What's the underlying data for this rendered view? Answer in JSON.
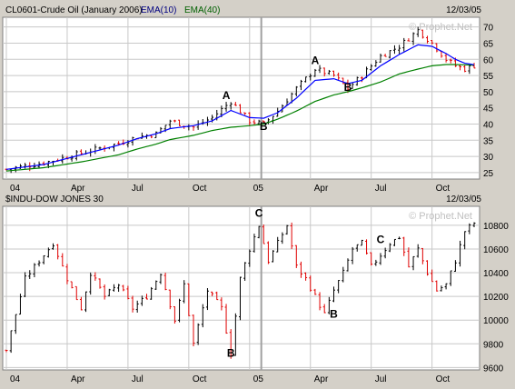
{
  "colors": {
    "background": "#d4d0c8",
    "plot": "#ffffff",
    "grid": "#c8c8c8",
    "up": "#000000",
    "down": "#e00000",
    "ema10": "#0000ff",
    "ema40": "#008000"
  },
  "chart_data": [
    {
      "type": "ohlc",
      "title": "CL0601-Crude Oil (January 2006)",
      "legend": [
        {
          "name": "EMA(10)",
          "color": "#0000ff"
        },
        {
          "name": "EMA(40)",
          "color": "#008000"
        }
      ],
      "date": "12/03/05",
      "watermark": "© Prophet.Net",
      "x_tick_labels": [
        "04",
        "Apr",
        "Jul",
        "Oct",
        "05",
        "Apr",
        "Jul",
        "Oct"
      ],
      "y_tick_labels": [
        "25",
        "30",
        "35",
        "40",
        "45",
        "50",
        "55",
        "60",
        "65",
        "70"
      ],
      "ylim": [
        23,
        73
      ],
      "grid": true,
      "weeks": 101,
      "year_boundary_week": 55,
      "anchors": {
        "weeks": [
          0,
          8,
          16,
          24,
          28,
          32,
          35,
          40,
          44,
          48,
          52,
          55,
          58,
          62,
          66,
          70,
          73,
          76,
          80,
          84,
          88,
          91,
          94,
          96,
          98,
          100
        ],
        "close": [
          26,
          28,
          31,
          34,
          36,
          37,
          41,
          39,
          42,
          47,
          41,
          40,
          44,
          51,
          57,
          55,
          51,
          55,
          61,
          64,
          69,
          65,
          60,
          58,
          57,
          58
        ],
        "ema10": [
          26,
          27.5,
          30.5,
          33.5,
          35.5,
          37,
          38.6,
          39.5,
          41,
          44.2,
          42,
          41.8,
          43.5,
          48,
          53.5,
          54,
          52.5,
          53.5,
          58,
          61.5,
          64.5,
          64,
          61.8,
          60,
          58.8,
          58.3
        ],
        "ema40": [
          25.5,
          26.5,
          28.3,
          30.5,
          32.3,
          33.8,
          35.2,
          36.5,
          38,
          39,
          39.5,
          40,
          41.5,
          44,
          47,
          49,
          50,
          51.2,
          53,
          55.5,
          57,
          58,
          58.4,
          58.4,
          58.3,
          58.2
        ]
      },
      "annotations": [
        {
          "text": "A",
          "week": 47,
          "value": 47.7
        },
        {
          "text": "B",
          "week": 55,
          "value": 38.2
        },
        {
          "text": "A",
          "week": 66,
          "value": 58.5
        },
        {
          "text": "B",
          "week": 73,
          "value": 50.3
        }
      ]
    },
    {
      "type": "ohlc",
      "title": "$INDU-DOW JONES 30",
      "date": "12/03/05",
      "watermark": "© Prophet.Net",
      "x_tick_labels": [
        "04",
        "Apr",
        "Jul",
        "Oct",
        "05",
        "Apr",
        "Jul",
        "Oct"
      ],
      "y_tick_labels": [
        "9600",
        "9800",
        "10000",
        "10200",
        "10400",
        "10600",
        "10800"
      ],
      "ylim": [
        9580,
        10960
      ],
      "grid": true,
      "weeks": 101,
      "year_boundary_week": 55,
      "anchors": {
        "weeks": [
          0,
          4,
          7,
          10,
          13,
          16,
          18,
          21,
          24,
          27,
          30,
          33,
          36,
          38,
          40,
          43,
          46,
          48,
          50,
          52,
          54,
          56,
          58,
          60,
          62,
          64,
          66,
          68,
          70,
          72,
          74,
          76,
          78,
          80,
          82,
          84,
          86,
          88,
          90,
          92,
          94,
          96,
          98,
          100
        ],
        "close": [
          9750,
          10350,
          10500,
          10650,
          10350,
          10100,
          10400,
          10200,
          10300,
          10100,
          10200,
          10400,
          10000,
          10300,
          9800,
          10250,
          10100,
          9720,
          10350,
          10600,
          10800,
          10500,
          10650,
          10800,
          10450,
          10350,
          10200,
          10050,
          10250,
          10400,
          10600,
          10650,
          10450,
          10550,
          10650,
          10700,
          10450,
          10600,
          10400,
          10250,
          10300,
          10500,
          10750,
          10820
        ]
      },
      "annotations": [
        {
          "text": "C",
          "week": 54,
          "value": 10870
        },
        {
          "text": "B",
          "week": 48,
          "value": 9690
        },
        {
          "text": "B",
          "week": 70,
          "value": 10020
        },
        {
          "text": "C",
          "week": 80,
          "value": 10650
        }
      ]
    }
  ]
}
